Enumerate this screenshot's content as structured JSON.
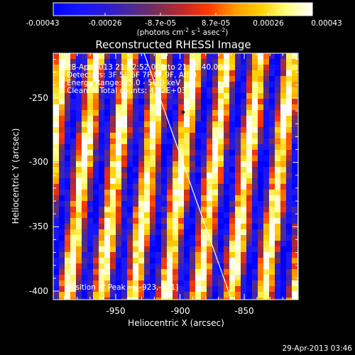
{
  "colorbar": {
    "gradient_colors": [
      "#0000ff",
      "#1515ff",
      "#2a1ad8",
      "#4b2a98",
      "#7a2e55",
      "#c0282a",
      "#ff3a00",
      "#ff9a00",
      "#ffd000",
      "#ffff80",
      "#ffffff"
    ],
    "tick_labels": [
      "-0.00043",
      "-0.00026",
      "-8.7e-05",
      "8.7e-05",
      "0.00026",
      "0.00043"
    ],
    "units_text": "(photons cm",
    "units_exp1": "-2",
    "units_mid": " s",
    "units_exp2": "-1",
    "units_mid2": " asec",
    "units_exp3": "-2",
    "units_close": ")"
  },
  "plot": {
    "title": "Reconstructed RHESSI Image",
    "xlabel": "Heliocentric X (arcsec)",
    "ylabel": "Heliocentric Y (arcsec)",
    "x_ticks": [
      "-950",
      "-900",
      "-850"
    ],
    "y_ticks": [
      "-250",
      "-300",
      "-350",
      "-400"
    ],
    "info_lines": [
      "28-Apr-2013 21:12:52.000 to 21:15:40.000",
      "Detectors: 3F 5F 6F 7F 8F 9F, Att 0",
      "Energy Range: 25.0 - 50.0 keV",
      "Clean     Total counts: 4.32E+03"
    ],
    "peak_label": "Position of Peak = [-923,-321]",
    "timestamp": "29-Apr-2013 03:46"
  },
  "chart_data": {
    "type": "heatmap",
    "title": "Reconstructed RHESSI Image",
    "xlabel": "Heliocentric X (arcsec)",
    "ylabel": "Heliocentric Y (arcsec)",
    "xlim": [
      -997,
      -812
    ],
    "ylim": [
      -410,
      -224
    ],
    "colorbar_range": [
      -0.00043,
      0.00043
    ],
    "peak_position": [
      -923,
      -321
    ],
    "limb_line": [
      [
        -928,
        -224
      ],
      [
        -862,
        -410
      ]
    ]
  }
}
